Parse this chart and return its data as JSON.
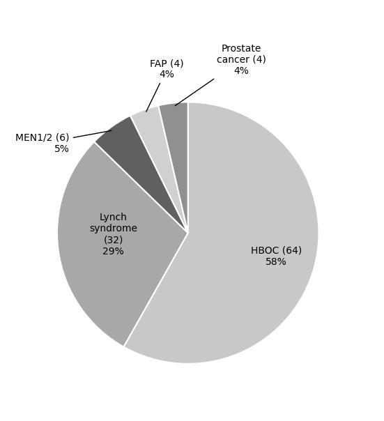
{
  "values": [
    64,
    32,
    6,
    4,
    4
  ],
  "colors": [
    "#c8c8c8",
    "#a8a8a8",
    "#606060",
    "#d0d0d0",
    "#909090"
  ],
  "startangle": 90,
  "figsize": [
    5.51,
    6.04
  ],
  "dpi": 100,
  "background_color": "#ffffff",
  "hboc_text": "HBOC (64)\n58%",
  "lynch_text": "Lynch\nsyndrome\n(32)\n29%",
  "men_text": "MEN1/2 (6)\n5%",
  "fap_text": "FAP (4)\n4%",
  "prostate_text": "Prostate\ncancer (4)\n4%",
  "fontsize": 10
}
